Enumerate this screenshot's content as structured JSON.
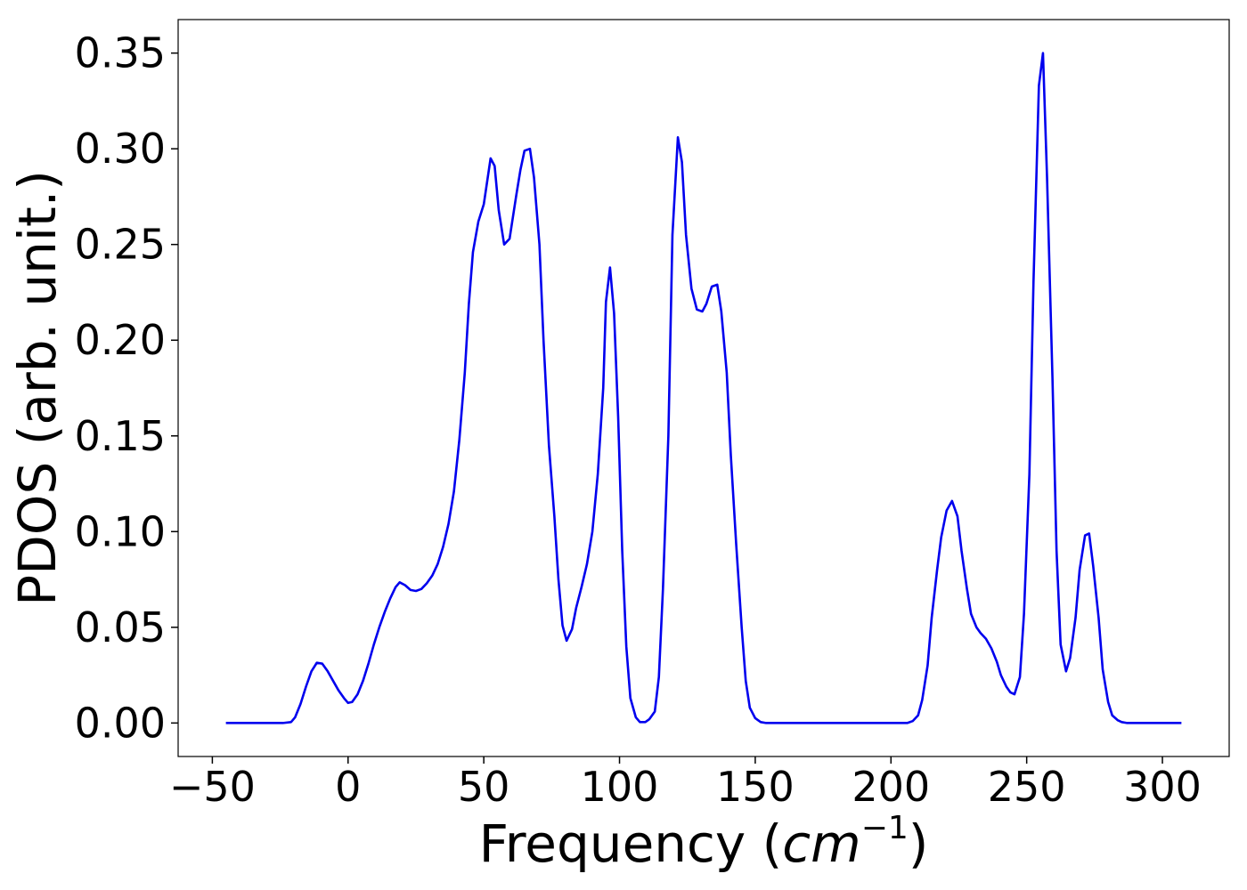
{
  "chart_data": {
    "type": "line",
    "xlabel": [
      "Frequency (",
      "cm",
      "−1",
      ")"
    ],
    "ylabel": "PDOS (arb. unit.)",
    "color": "#0000ee",
    "xlim": [
      -62.6,
      324.6
    ],
    "ylim": [
      -0.0175,
      0.3675
    ],
    "xticks": [
      {
        "value": -50,
        "label": "−50"
      },
      0,
      50,
      100,
      150,
      200,
      250,
      300
    ],
    "yticks": [
      {
        "value": 0,
        "label": "0.00"
      },
      0.05,
      {
        "value": 0.1,
        "label": "0.10"
      },
      0.15,
      {
        "value": 0.2,
        "label": "0.20"
      },
      0.25,
      {
        "value": 0.3,
        "label": "0.30"
      },
      0.35
    ],
    "x": [
      -45,
      -24,
      -21,
      -19.5,
      -17.5,
      -15.5,
      -13.5,
      -11.5,
      -9.5,
      -7.5,
      -5.5,
      -3.5,
      -1.5,
      0,
      1.5,
      3.5,
      5.5,
      7.5,
      9.5,
      11.5,
      13.5,
      15.5,
      17.5,
      19,
      21,
      23,
      25,
      27,
      29,
      31,
      33,
      35,
      37,
      39,
      41,
      43,
      44.5,
      46,
      48,
      50,
      52.5,
      54,
      55.5,
      57.5,
      59.5,
      62,
      63.5,
      65,
      67,
      68.5,
      70.5,
      72,
      74,
      76,
      77.5,
      79,
      80.5,
      82.5,
      84,
      86,
      88,
      90,
      92,
      94,
      95,
      96.5,
      98,
      99.5,
      101,
      102.5,
      104,
      106,
      107.5,
      109.5,
      111,
      113,
      114.5,
      116,
      118,
      119.5,
      121.5,
      123,
      124.5,
      126.5,
      128.5,
      130.5,
      132,
      134,
      136,
      137.5,
      139.5,
      141,
      143,
      145,
      146.5,
      148,
      150,
      152,
      154,
      206,
      208,
      210,
      211.5,
      213.5,
      215,
      217,
      218.5,
      220.5,
      222.5,
      224.5,
      226,
      228,
      229.5,
      231.5,
      233,
      235,
      237,
      239,
      240.5,
      242.5,
      244,
      245.5,
      247.5,
      249,
      251,
      252.5,
      254.5,
      256,
      257.5,
      259.5,
      261,
      262.5,
      264.5,
      266,
      268,
      269.5,
      271.5,
      273,
      274.5,
      276.5,
      278,
      280,
      281.5,
      283.5,
      285,
      287,
      307
    ],
    "values": [
      0,
      0,
      0.0005,
      0.003,
      0.01,
      0.019,
      0.027,
      0.0315,
      0.031,
      0.027,
      0.022,
      0.017,
      0.013,
      0.0105,
      0.011,
      0.015,
      0.022,
      0.031,
      0.041,
      0.05,
      0.058,
      0.065,
      0.071,
      0.0735,
      0.072,
      0.0695,
      0.069,
      0.07,
      0.073,
      0.077,
      0.083,
      0.092,
      0.104,
      0.121,
      0.148,
      0.183,
      0.219,
      0.246,
      0.262,
      0.271,
      0.295,
      0.291,
      0.268,
      0.25,
      0.253,
      0.276,
      0.289,
      0.299,
      0.3,
      0.285,
      0.25,
      0.2,
      0.145,
      0.108,
      0.075,
      0.051,
      0.043,
      0.049,
      0.06,
      0.071,
      0.083,
      0.1,
      0.13,
      0.175,
      0.22,
      0.238,
      0.214,
      0.16,
      0.09,
      0.04,
      0.013,
      0.003,
      0.0005,
      0.0005,
      0.002,
      0.006,
      0.024,
      0.07,
      0.15,
      0.255,
      0.306,
      0.293,
      0.255,
      0.227,
      0.216,
      0.215,
      0.219,
      0.228,
      0.229,
      0.215,
      0.183,
      0.14,
      0.093,
      0.05,
      0.022,
      0.008,
      0.0025,
      0.0005,
      0,
      0,
      0.001,
      0.004,
      0.012,
      0.03,
      0.055,
      0.08,
      0.097,
      0.111,
      0.116,
      0.108,
      0.09,
      0.07,
      0.057,
      0.05,
      0.047,
      0.044,
      0.039,
      0.032,
      0.025,
      0.019,
      0.016,
      0.015,
      0.024,
      0.057,
      0.13,
      0.23,
      0.333,
      0.35,
      0.285,
      0.18,
      0.09,
      0.041,
      0.027,
      0.034,
      0.055,
      0.08,
      0.098,
      0.099,
      0.082,
      0.055,
      0.028,
      0.011,
      0.004,
      0.0015,
      0.0005,
      0,
      0
    ]
  }
}
